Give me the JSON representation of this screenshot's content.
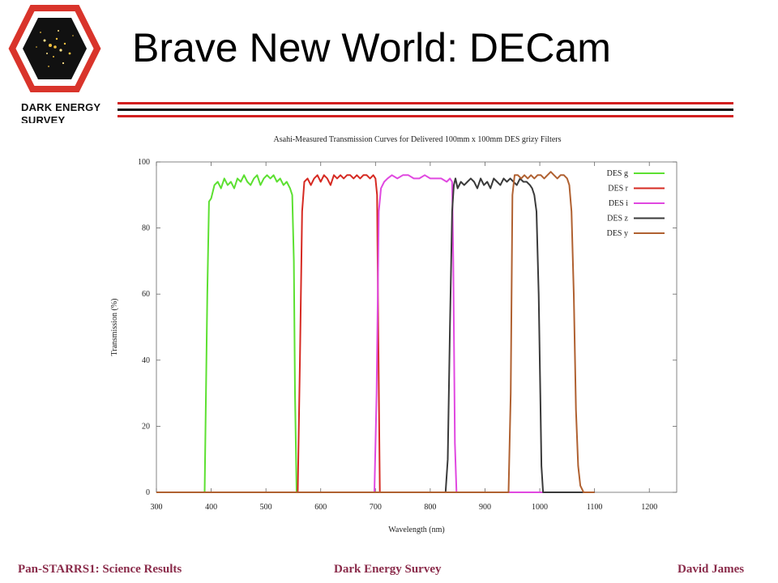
{
  "logo": {
    "line1": "DARK ENERGY",
    "line2": "SURVEY",
    "colors": {
      "hexagon": "#d9342b",
      "space": "#111111"
    }
  },
  "slide_title": "Brave New World: DECam",
  "rule_colors": {
    "red": "#d21f1f",
    "black": "#111111"
  },
  "footer": {
    "left": "Pan-STARRS1: Science Results",
    "center": "Dark Energy Survey",
    "right": "David James",
    "color": "#8a2b4a"
  },
  "chart_data": {
    "type": "line",
    "title": "Asahi-Measured Transmission Curves for Delivered 100mm x 100mm DES grizy Filters",
    "xlabel": "Wavelength (nm)",
    "ylabel": "Transmission (%)",
    "xlim": [
      300,
      1250
    ],
    "ylim": [
      0,
      100
    ],
    "xticks": [
      300,
      400,
      500,
      600,
      700,
      800,
      900,
      1000,
      1100,
      1200
    ],
    "yticks": [
      0,
      20,
      40,
      60,
      80,
      100
    ],
    "grid": false,
    "legend_position": "top-right",
    "series": [
      {
        "name": "DES g",
        "color": "#5ce031",
        "x": [
          300,
          388,
          393,
          396,
          400,
          406,
          412,
          418,
          424,
          430,
          436,
          442,
          448,
          454,
          460,
          466,
          472,
          478,
          484,
          490,
          496,
          502,
          508,
          514,
          520,
          526,
          532,
          538,
          544,
          548,
          551,
          553,
          556,
          1100
        ],
        "y": [
          0,
          0,
          60,
          88,
          89,
          93,
          94,
          92,
          95,
          93,
          94,
          92,
          95,
          94,
          96,
          94,
          93,
          95,
          96,
          93,
          95,
          96,
          95,
          96,
          94,
          95,
          93,
          94,
          92,
          90,
          70,
          30,
          0,
          0
        ]
      },
      {
        "name": "DES r",
        "color": "#d62a22",
        "x": [
          300,
          558,
          562,
          566,
          570,
          576,
          582,
          588,
          594,
          600,
          606,
          612,
          618,
          624,
          630,
          636,
          642,
          648,
          654,
          660,
          666,
          672,
          678,
          684,
          690,
          696,
          700,
          703,
          705,
          708,
          1100
        ],
        "y": [
          0,
          0,
          40,
          85,
          94,
          95,
          93,
          95,
          96,
          94,
          96,
          95,
          93,
          96,
          95,
          96,
          95,
          96,
          96,
          95,
          96,
          95,
          96,
          96,
          95,
          96,
          95,
          90,
          50,
          0,
          0
        ]
      },
      {
        "name": "DES i",
        "color": "#e048e0",
        "x": [
          300,
          698,
          702,
          706,
          710,
          716,
          722,
          730,
          740,
          750,
          760,
          770,
          780,
          790,
          800,
          810,
          820,
          830,
          836,
          840,
          842,
          845,
          848,
          1100
        ],
        "y": [
          0,
          0,
          30,
          85,
          92,
          94,
          95,
          96,
          95,
          96,
          96,
          95,
          95,
          96,
          95,
          95,
          95,
          94,
          95,
          94,
          70,
          15,
          0,
          0
        ]
      },
      {
        "name": "DES z",
        "color": "#3a3a3a",
        "x": [
          300,
          828,
          832,
          836,
          840,
          843,
          846,
          850,
          856,
          862,
          868,
          874,
          880,
          886,
          892,
          898,
          904,
          910,
          916,
          922,
          928,
          934,
          940,
          946,
          952,
          958,
          964,
          970,
          976,
          982,
          986,
          990,
          994,
          998,
          1001,
          1003,
          1006,
          1100
        ],
        "y": [
          0,
          0,
          10,
          50,
          85,
          93,
          95,
          92,
          94,
          93,
          94,
          95,
          94,
          92,
          95,
          93,
          94,
          92,
          95,
          94,
          93,
          95,
          94,
          95,
          94,
          93,
          95,
          94,
          94,
          93,
          92,
          90,
          85,
          60,
          30,
          8,
          0,
          0
        ]
      },
      {
        "name": "DES y",
        "color": "#b06131",
        "x": [
          300,
          943,
          947,
          950,
          954,
          960,
          966,
          972,
          978,
          984,
          990,
          996,
          1002,
          1008,
          1014,
          1020,
          1026,
          1032,
          1038,
          1044,
          1050,
          1054,
          1058,
          1062,
          1066,
          1070,
          1074,
          1080,
          1090,
          1100
        ],
        "y": [
          0,
          0,
          30,
          90,
          96,
          96,
          95,
          96,
          95,
          96,
          95,
          96,
          96,
          95,
          96,
          97,
          96,
          95,
          96,
          96,
          95,
          93,
          85,
          60,
          25,
          8,
          2,
          0,
          0,
          0
        ]
      }
    ]
  }
}
